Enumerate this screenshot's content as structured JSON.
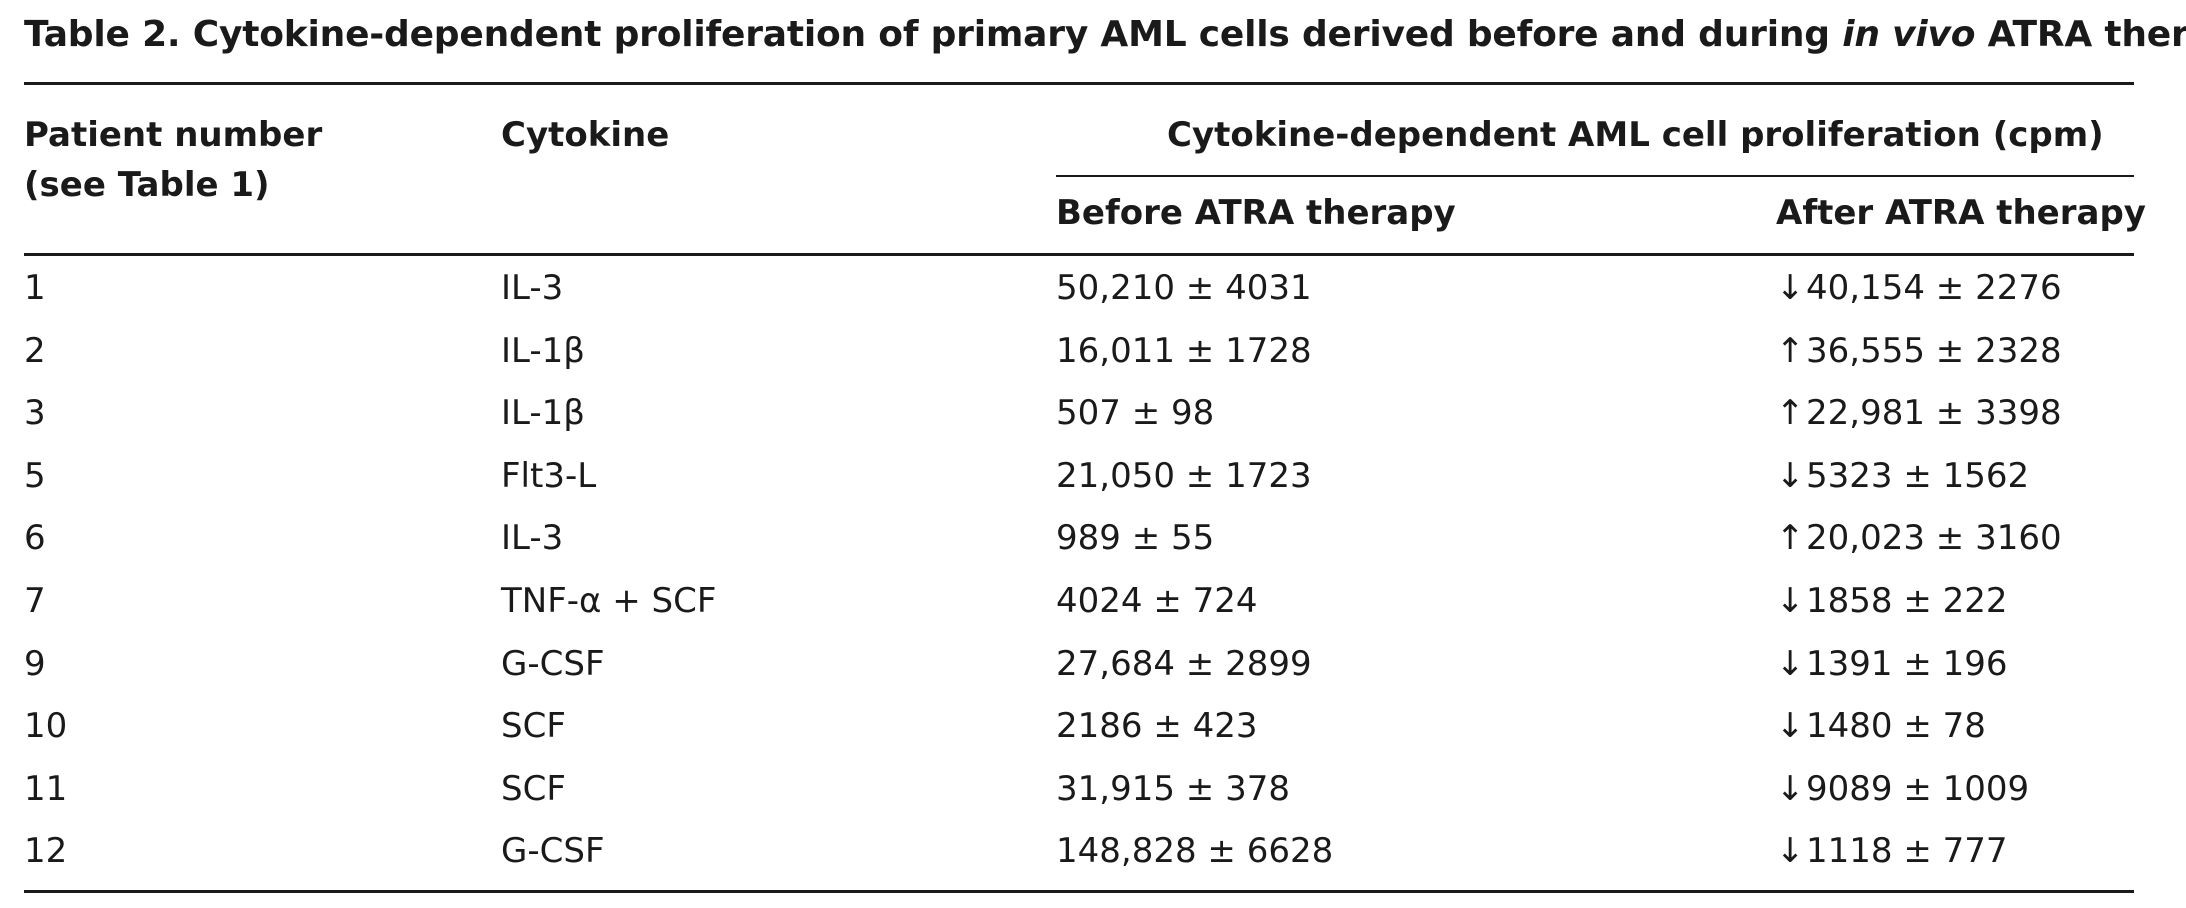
{
  "caption": {
    "prefix": "Table 2. Cytokine-dependent proliferation of primary AML cells derived before and during ",
    "italic": "in vivo",
    "suffix": " ATRA therapy."
  },
  "headers": {
    "patient_line1": "Patient number",
    "patient_line2": "(see Table 1)",
    "cytokine": "Cytokine",
    "group": "Cytokine-dependent AML cell proliferation (cpm)",
    "before": "Before ATRA therapy",
    "after": "After ATRA therapy"
  },
  "rows": [
    {
      "patient": "1",
      "cytokine": "IL-3",
      "before": "50,210 ± 4031",
      "arrow": "↓",
      "after": "40,154 ± 2276"
    },
    {
      "patient": "2",
      "cytokine": "IL-1β",
      "before": "16,011 ± 1728",
      "arrow": "↑",
      "after": "36,555 ± 2328"
    },
    {
      "patient": "3",
      "cytokine": "IL-1β",
      "before": "507 ± 98",
      "arrow": "↑",
      "after": "22,981 ± 3398"
    },
    {
      "patient": "5",
      "cytokine": "Flt3-L",
      "before": "21,050 ± 1723",
      "arrow": "↓",
      "after": "5323 ± 1562"
    },
    {
      "patient": "6",
      "cytokine": "IL-3",
      "before": "989 ± 55",
      "arrow": "↑",
      "after": "20,023 ± 3160"
    },
    {
      "patient": "7",
      "cytokine": "TNF-α + SCF",
      "before": "4024 ± 724",
      "arrow": "↓",
      "after": "1858 ± 222"
    },
    {
      "patient": "9",
      "cytokine": "G-CSF",
      "before": "27,684 ± 2899",
      "arrow": "↓",
      "after": "1391 ± 196"
    },
    {
      "patient": "10",
      "cytokine": "SCF",
      "before": "2186 ± 423",
      "arrow": "↓",
      "after": "1480 ± 78"
    },
    {
      "patient": "11",
      "cytokine": "SCF",
      "before": "31,915 ± 378",
      "arrow": "↓",
      "after": "9089 ± 1009"
    },
    {
      "patient": "12",
      "cytokine": "G-CSF",
      "before": "148,828 ± 6628",
      "arrow": "↓",
      "after": "1118 ± 777"
    }
  ]
}
